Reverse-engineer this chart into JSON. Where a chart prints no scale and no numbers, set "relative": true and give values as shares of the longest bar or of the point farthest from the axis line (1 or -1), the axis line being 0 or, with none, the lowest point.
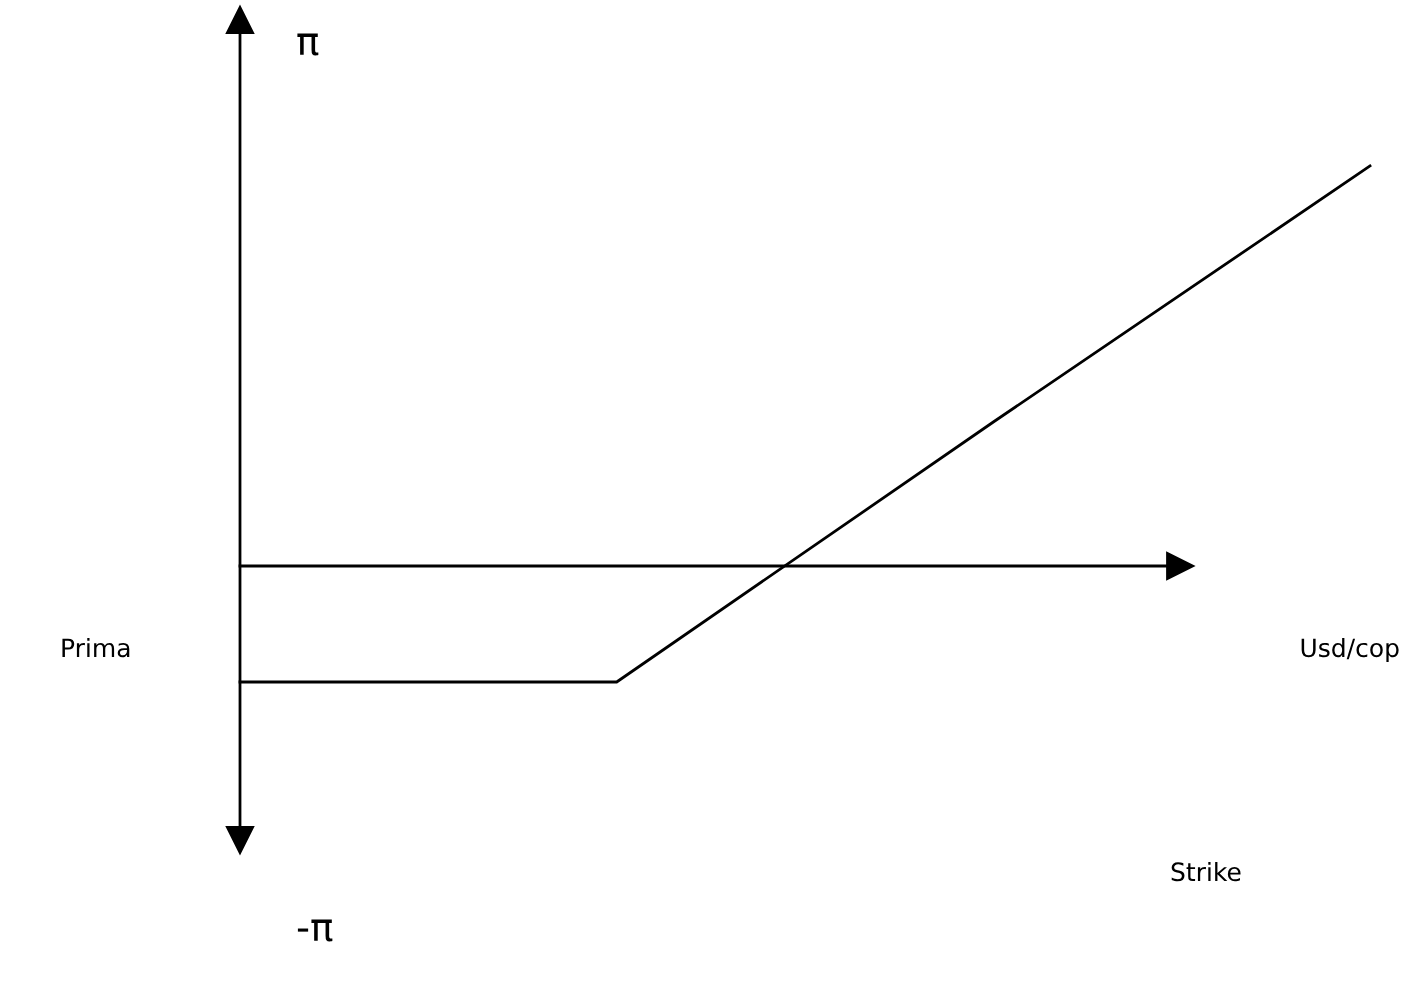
{
  "chart_data": {
    "type": "line",
    "relative": true,
    "categories": [
      null,
      null,
      null,
      null
    ],
    "series": [
      {
        "color": "#000000",
        "values": [
          -0.29,
          -0.29,
          0.36,
          1.0
        ]
      }
    ],
    "legend": false,
    "annotations": [
      "π",
      "-π",
      "Prima",
      "Usd/cop",
      "Strike"
    ]
  }
}
